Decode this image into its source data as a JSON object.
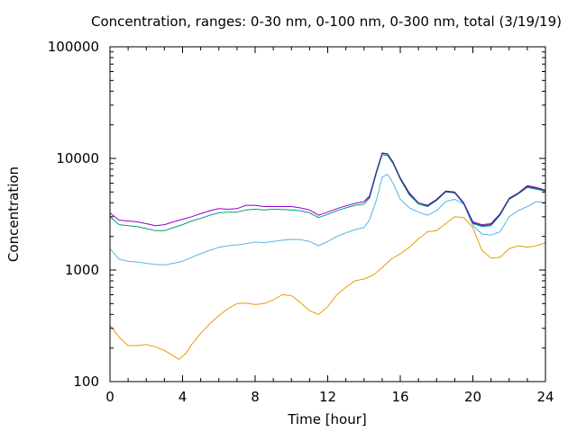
{
  "chart_data": {
    "type": "line",
    "title": "Concentration, ranges: 0-30 nm, 0-100 nm, 0-300 nm, total (3/19/19)",
    "xlabel": "Time [hour]",
    "ylabel": "Concentration",
    "xlim": [
      0,
      24
    ],
    "ylim": [
      100,
      100000
    ],
    "yscale": "log",
    "grid": false,
    "legend": "none",
    "x_ticks": [
      {
        "value": 0,
        "label": "0"
      },
      {
        "value": 4,
        "label": "4"
      },
      {
        "value": 8,
        "label": "8"
      },
      {
        "value": 12,
        "label": "12"
      },
      {
        "value": 16,
        "label": "16"
      },
      {
        "value": 20,
        "label": "20"
      },
      {
        "value": 24,
        "label": "24"
      }
    ],
    "y_ticks": [
      {
        "value": 100,
        "label": "100"
      },
      {
        "value": 1000,
        "label": "1000"
      },
      {
        "value": 10000,
        "label": "10000"
      },
      {
        "value": 100000,
        "label": "100000"
      }
    ],
    "series": [
      {
        "color": "#e69f00",
        "x": [
          0,
          0.5,
          1,
          1.5,
          2,
          2.5,
          3,
          3.5,
          3.8,
          4.2,
          4.5,
          5,
          5.5,
          6,
          6.5,
          7,
          7.5,
          8,
          8.5,
          9,
          9.5,
          10,
          10.5,
          11,
          11.5,
          12,
          12.5,
          13,
          13.5,
          14,
          14.5,
          15,
          15.5,
          16,
          16.5,
          17,
          17.5,
          18,
          18.5,
          19,
          19.5,
          20,
          20.5,
          21,
          21.5,
          22,
          22.5,
          23,
          23.5,
          24
        ],
        "y": [
          320,
          250,
          210,
          210,
          215,
          205,
          190,
          170,
          158,
          180,
          215,
          270,
          330,
          390,
          450,
          500,
          505,
          490,
          500,
          540,
          600,
          590,
          510,
          430,
          400,
          470,
          600,
          700,
          800,
          830,
          900,
          1050,
          1250,
          1400,
          1600,
          1900,
          2200,
          2250,
          2600,
          3000,
          2950,
          2400,
          1500,
          1280,
          1300,
          1550,
          1650,
          1600,
          1650,
          1750
        ]
      },
      {
        "color": "#56b4e9",
        "x": [
          0,
          0.5,
          1,
          1.5,
          2,
          2.5,
          3,
          3.5,
          4,
          4.5,
          5,
          5.5,
          6,
          6.5,
          7,
          7.5,
          8,
          8.5,
          9,
          9.5,
          10,
          10.5,
          11,
          11.5,
          12,
          12.5,
          13,
          13.5,
          14,
          14.3,
          14.7,
          15,
          15.3,
          15.6,
          16,
          16.5,
          17,
          17.5,
          18,
          18.5,
          19,
          19.5,
          20,
          20.5,
          21,
          21.5,
          22,
          22.5,
          23,
          23.5,
          24
        ],
        "y": [
          1550,
          1250,
          1200,
          1180,
          1150,
          1120,
          1110,
          1150,
          1200,
          1300,
          1400,
          1500,
          1600,
          1650,
          1680,
          1720,
          1780,
          1760,
          1800,
          1850,
          1880,
          1870,
          1800,
          1650,
          1800,
          2000,
          2150,
          2300,
          2400,
          2800,
          4300,
          6800,
          7200,
          6000,
          4300,
          3600,
          3300,
          3100,
          3400,
          4100,
          4300,
          3900,
          2500,
          2100,
          2050,
          2200,
          3000,
          3400,
          3700,
          4100,
          4000
        ]
      },
      {
        "color": "#009e73",
        "x": [
          0,
          0.5,
          1,
          1.5,
          2,
          2.5,
          3,
          3.5,
          4,
          4.5,
          5,
          5.5,
          6,
          6.5,
          7,
          7.5,
          8,
          8.5,
          9,
          9.5,
          10,
          10.5,
          11,
          11.5,
          12,
          12.5,
          13,
          13.5,
          14,
          14.3,
          14.7,
          15,
          15.3,
          15.6,
          16,
          16.5,
          17,
          17.5,
          18,
          18.5,
          19,
          19.5,
          20,
          20.5,
          21,
          21.5,
          22,
          22.5,
          23,
          23.5,
          24
        ],
        "y": [
          3000,
          2550,
          2500,
          2450,
          2350,
          2250,
          2250,
          2400,
          2550,
          2750,
          2900,
          3100,
          3250,
          3300,
          3300,
          3450,
          3500,
          3450,
          3500,
          3480,
          3450,
          3400,
          3250,
          2950,
          3150,
          3400,
          3600,
          3800,
          3900,
          4400,
          7500,
          10800,
          10600,
          9000,
          6500,
          4700,
          3900,
          3700,
          4200,
          5000,
          4900,
          3900,
          2600,
          2450,
          2500,
          3100,
          4300,
          4800,
          5500,
          5300,
          5100
        ]
      },
      {
        "color": "#9400d3",
        "x": [
          0,
          0.5,
          1,
          1.5,
          2,
          2.5,
          3,
          3.5,
          4,
          4.5,
          5,
          5.5,
          6,
          6.5,
          7,
          7.5,
          8,
          8.5,
          9,
          9.5,
          10,
          10.5,
          11,
          11.5,
          12,
          12.5,
          13,
          13.5,
          14,
          14.3,
          14.7,
          15,
          15.3,
          15.6,
          16,
          16.5,
          17,
          17.5,
          18,
          18.5,
          19,
          19.5,
          20,
          20.5,
          21,
          21.5,
          22,
          22.5,
          23,
          23.5,
          24
        ],
        "y": [
          3250,
          2800,
          2750,
          2700,
          2600,
          2500,
          2550,
          2700,
          2850,
          3000,
          3200,
          3400,
          3550,
          3500,
          3550,
          3800,
          3800,
          3700,
          3700,
          3700,
          3700,
          3600,
          3450,
          3100,
          3300,
          3550,
          3750,
          3950,
          4100,
          4600,
          7800,
          11200,
          11000,
          9300,
          6700,
          4900,
          4000,
          3800,
          4300,
          5100,
          5000,
          4000,
          2700,
          2550,
          2600,
          3200,
          4400,
          4900,
          5700,
          5500,
          5200
        ]
      },
      {
        "color": "#1f3a80",
        "x": [
          14,
          14.3,
          14.7,
          15,
          15.3,
          15.6,
          16,
          16.5,
          17,
          17.5,
          18,
          18.5,
          19,
          19.5,
          20,
          20.5,
          21,
          21.5,
          22,
          22.5,
          23,
          23.5,
          24
        ],
        "y": [
          4100,
          4500,
          7700,
          11100,
          10900,
          9200,
          6600,
          4800,
          4000,
          3750,
          4250,
          5050,
          4950,
          3950,
          2650,
          2500,
          2550,
          3150,
          4350,
          4850,
          5600,
          5400,
          5150
        ]
      }
    ]
  }
}
